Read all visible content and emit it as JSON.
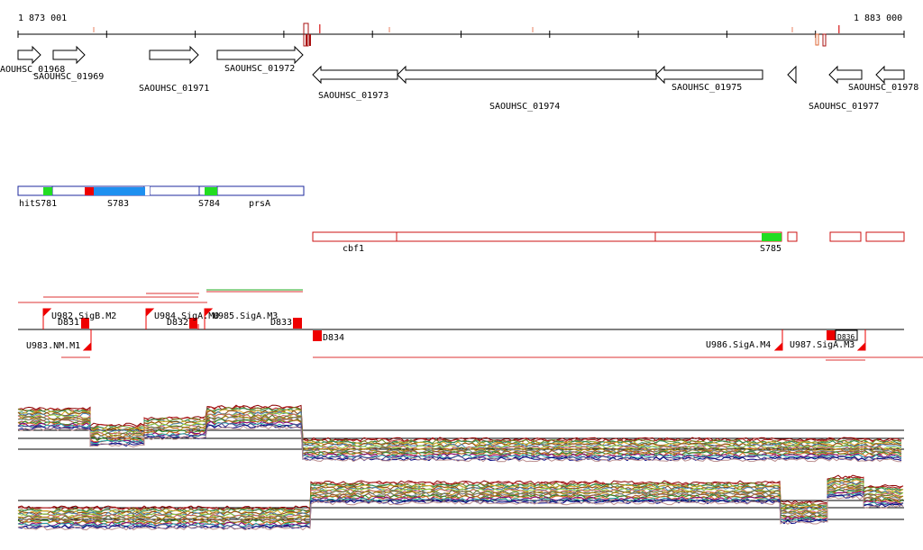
{
  "ruler": {
    "start_label": "1 873 001",
    "end_label": "1 883 000"
  },
  "genes_forward": [
    {
      "label": "AOUHSC_01968"
    },
    {
      "label": "SAOUHSC_01969"
    },
    {
      "label": "SAOUHSC_01971"
    },
    {
      "label": "SAOUHSC_01972"
    }
  ],
  "genes_reverse": [
    {
      "label": "SAOUHSC_01973"
    },
    {
      "label": "SAOUHSC_01974"
    },
    {
      "label": "SAOUHSC_01975"
    },
    {
      "label": "SAOUHSC_01977"
    },
    {
      "label": "SAOUHSC_01978"
    }
  ],
  "segments_top": [
    {
      "label": "hitS781"
    },
    {
      "label": "S783"
    },
    {
      "label": "S784"
    },
    {
      "label": "prsA"
    }
  ],
  "segments_bottom": [
    {
      "label": "cbf1"
    },
    {
      "label": "S785"
    }
  ],
  "features_upper": [
    {
      "label": "U982.SigB.M2"
    },
    {
      "label": "D831"
    },
    {
      "label": "U984.SigA.M0"
    },
    {
      "label": "D832"
    },
    {
      "label": "U985.SigA.M3"
    },
    {
      "label": "D833"
    }
  ],
  "features_lower": [
    {
      "label": "U983.NM.M1"
    },
    {
      "label": "D834"
    },
    {
      "label": "U986.SigA.M4"
    },
    {
      "label": "U987.SigA.M3"
    },
    {
      "label": "D836"
    }
  ],
  "colors": {
    "gene_stroke": "#000000",
    "segment_stroke": "#1e2a9c",
    "segment_red_stroke": "#cc1111",
    "terminator": "#ee0000",
    "sigma_green": "#22dd22",
    "sigma_blue": "#1e90f0"
  }
}
